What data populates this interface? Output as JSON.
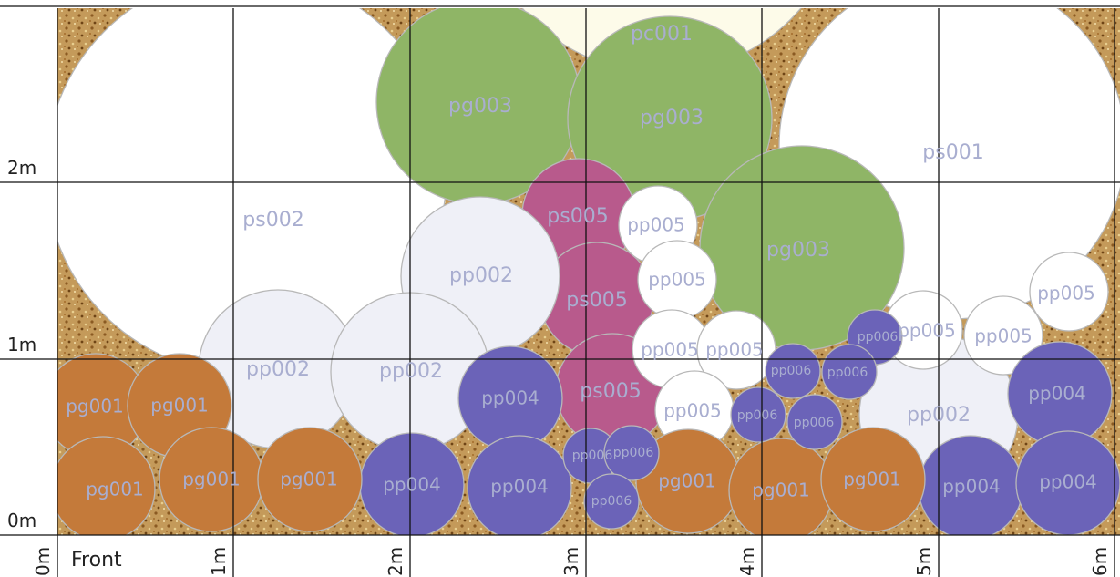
{
  "diagram": {
    "grid_units_x": 6,
    "grid_units_y": 3,
    "y_labels": [
      "0m",
      "1m",
      "2m"
    ],
    "x_labels": [
      "0m",
      "1m",
      "2m",
      "3m",
      "4m",
      "5m",
      "6m"
    ],
    "front_label": "Front",
    "colors": {
      "pg001": "#c47a3a",
      "pg003": "#8fb566",
      "pp002": "#eff0f7",
      "pp004": "#6b63b8",
      "pp005": "#ffffff",
      "pp006": "#6b63b8",
      "ps005": "#b85a8c",
      "ps001": "#ffffff",
      "ps002": "#ffffff",
      "pc001": "#fdfbe9",
      "soil": "#c49a5a",
      "label": "#a9aed0"
    },
    "plants": [
      {
        "id": "pc001",
        "label": "pc001"
      },
      {
        "id": "ps001",
        "label": "ps001"
      },
      {
        "id": "ps002",
        "label": "ps002"
      },
      {
        "id": "pg003",
        "label": "pg003"
      },
      {
        "id": "pg003",
        "label": "pg003"
      },
      {
        "id": "pg003",
        "label": "pg003"
      },
      {
        "id": "ps005",
        "label": "ps005"
      },
      {
        "id": "ps005",
        "label": "ps005"
      },
      {
        "id": "ps005",
        "label": "ps005"
      },
      {
        "id": "pp002",
        "label": "pp002"
      },
      {
        "id": "pp002",
        "label": "pp002"
      },
      {
        "id": "pp002",
        "label": "pp002"
      },
      {
        "id": "pp002",
        "label": "pp002"
      },
      {
        "id": "pp005",
        "label": "pp005"
      },
      {
        "id": "pp005",
        "label": "pp005"
      },
      {
        "id": "pp005",
        "label": "pp005"
      },
      {
        "id": "pp005",
        "label": "pp005"
      },
      {
        "id": "pp005",
        "label": "pp005"
      },
      {
        "id": "pp005",
        "label": "pp005"
      },
      {
        "id": "pp005",
        "label": "pp005"
      },
      {
        "id": "pp005",
        "label": "pp005"
      },
      {
        "id": "pp004",
        "label": "pp004"
      },
      {
        "id": "pp004",
        "label": "pp004"
      },
      {
        "id": "pp004",
        "label": "pp004"
      },
      {
        "id": "pp004",
        "label": "pp004"
      },
      {
        "id": "pp004",
        "label": "pp004"
      },
      {
        "id": "pp004",
        "label": "pp004"
      },
      {
        "id": "pg001",
        "label": "pg001"
      },
      {
        "id": "pg001",
        "label": "pg001"
      },
      {
        "id": "pg001",
        "label": "pg001"
      },
      {
        "id": "pg001",
        "label": "pg001"
      },
      {
        "id": "pg001",
        "label": "pg001"
      },
      {
        "id": "pg001",
        "label": "pg001"
      },
      {
        "id": "pg001",
        "label": "pg001"
      },
      {
        "id": "pg001",
        "label": "pg001"
      },
      {
        "id": "pp006",
        "label": "pp006"
      },
      {
        "id": "pp006",
        "label": "pp006"
      },
      {
        "id": "pp006",
        "label": "pp006"
      },
      {
        "id": "pp006",
        "label": "pp006"
      },
      {
        "id": "pp006",
        "label": "pp006"
      },
      {
        "id": "pp006",
        "label": "pp006"
      },
      {
        "id": "pp006",
        "label": "pp006"
      },
      {
        "id": "pp006",
        "label": "pp006"
      }
    ]
  }
}
